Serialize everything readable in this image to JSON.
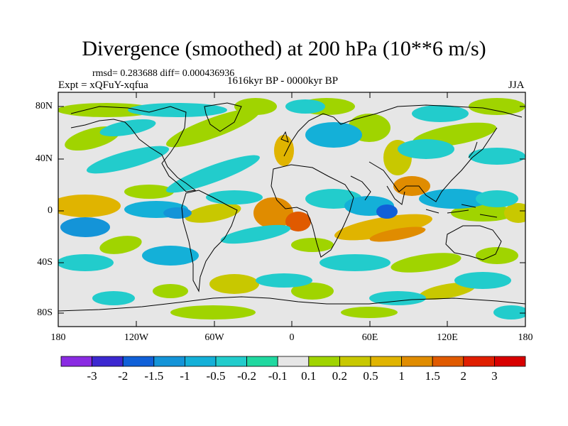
{
  "title": "Divergence (smoothed) at 200 hPa (10**6 m/s)",
  "stats": "rmsd= 0.283688 diff= 0.000436936",
  "experiment": "Expt = xQFuY-xqfua",
  "period": "1616kyr BP - 0000kyr BP",
  "season": "JJA",
  "lat_ticks": [
    "80N",
    "40N",
    "0",
    "40S",
    "80S"
  ],
  "lon_ticks": [
    "180",
    "120W",
    "60W",
    "0",
    "60E",
    "120E",
    "180"
  ],
  "colorbar": {
    "labels": [
      "-3",
      "-2",
      "-1.5",
      "-1",
      "-0.5",
      "-0.2",
      "-0.1",
      "0.1",
      "0.2",
      "0.5",
      "1",
      "1.5",
      "2",
      "3"
    ],
    "colors": [
      "#8a2be2",
      "#3c28d0",
      "#1060d8",
      "#1494d8",
      "#14b0d8",
      "#22cccc",
      "#20d8a0",
      "#e6e6e6",
      "#a0d400",
      "#c8c800",
      "#e0b400",
      "#e08c00",
      "#e05a00",
      "#e01e00",
      "#d80000"
    ]
  },
  "map_colors": {
    "background": "#e6e6e6",
    "neg1": "#22cccc",
    "neg2": "#14b0d8",
    "neg3": "#1494d8",
    "neg4": "#1060d8",
    "pos1": "#a0d400",
    "pos2": "#c8c800",
    "pos3": "#e0b400",
    "pos4": "#e08c00",
    "pos5": "#e05a00"
  }
}
